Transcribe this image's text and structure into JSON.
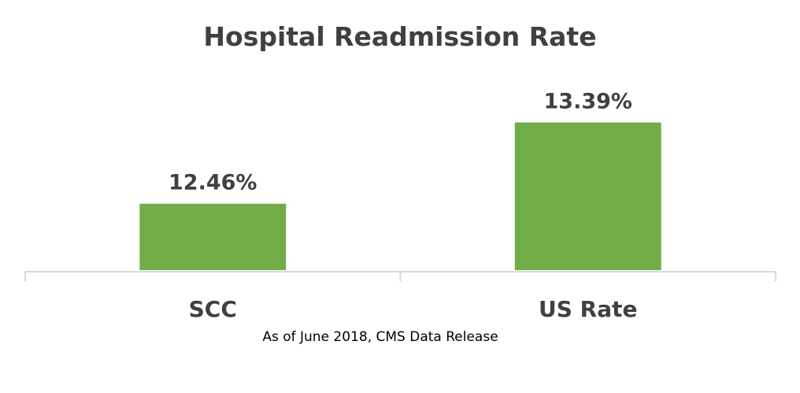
{
  "chart_data": {
    "type": "bar",
    "title": "Hospital Readmission Rate",
    "categories": [
      "SCC",
      "US Rate"
    ],
    "values": [
      12.46,
      13.39
    ],
    "data_labels": [
      "12.46%",
      "13.39%"
    ],
    "xlabel": "",
    "ylabel": "",
    "ylim": [
      11.7,
      13.8
    ],
    "grid": false,
    "legend": "none",
    "bar_color": "#70AD47",
    "footnote": "As of June 2018, CMS Data Release"
  }
}
